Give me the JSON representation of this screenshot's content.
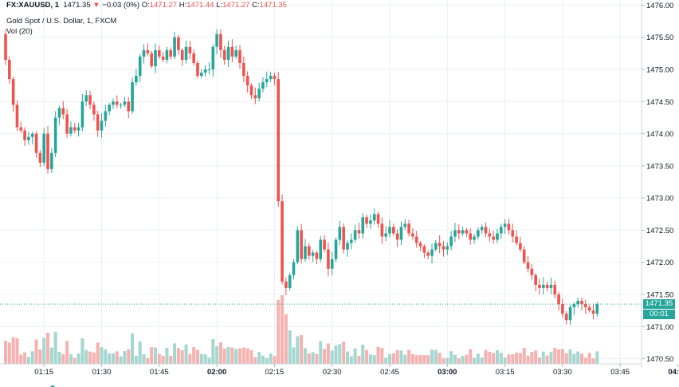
{
  "legend": {
    "symbol": "FX:XAUUSD, 1",
    "last": "1471.35",
    "arrow": "▼",
    "change": "−0.03 (0%)",
    "o_label": "O:",
    "o": "1471.27",
    "h_label": "H:",
    "h": "1471.44",
    "l_label": "L:",
    "l": "1471.27",
    "c_label": "C:",
    "c": "1471.35"
  },
  "series_title": "Gold Spot / U.S. Dollar, 1, FXCM",
  "volume_title": "Vol (20)",
  "price_tag": {
    "price": "1471.35",
    "countdown": "00:01"
  },
  "colors": {
    "up": "#26a69a",
    "down": "#ef5350",
    "up_vol": "#a5d6d0",
    "down_vol": "#f4b2b0",
    "grid": "#eceff2"
  },
  "chart_data": {
    "type": "candlestick",
    "title": "Gold Spot / U.S. Dollar, 1, FXCM",
    "interval": "1 minute",
    "ylim": [
      1470.42,
      1476.08
    ],
    "y_ticks": [
      1470.5,
      1471.0,
      1471.5,
      1472.0,
      1472.5,
      1473.0,
      1473.5,
      1474.0,
      1474.5,
      1475.0,
      1475.5,
      1476.0
    ],
    "y_tick_labels": [
      "1470.50",
      "1471.00",
      "1471.50",
      "1472.00",
      "1472.50",
      "1473.00",
      "1473.50",
      "1474.00",
      "1474.50",
      "1475.00",
      "1475.50",
      "1476.00"
    ],
    "x_ticks": [
      {
        "label": "01:15",
        "bar": 10,
        "bold": false
      },
      {
        "label": "01:30",
        "bar": 25,
        "bold": false
      },
      {
        "label": "01:45",
        "bar": 40,
        "bold": false
      },
      {
        "label": "02:00",
        "bar": 55,
        "bold": true
      },
      {
        "label": "02:15",
        "bar": 70,
        "bold": false
      },
      {
        "label": "02:30",
        "bar": 85,
        "bold": false
      },
      {
        "label": "02:45",
        "bar": 100,
        "bold": false
      },
      {
        "label": "03:00",
        "bar": 115,
        "bold": true
      },
      {
        "label": "03:15",
        "bar": 130,
        "bold": false
      },
      {
        "label": "03:30",
        "bar": 145,
        "bold": false
      },
      {
        "label": "03:45",
        "bar": 160,
        "bold": false
      },
      {
        "label": "04:00",
        "bar": 175,
        "bold": true
      }
    ],
    "closes": [
      1475.15,
      1474.85,
      1474.45,
      1474.1,
      1474.05,
      1473.9,
      1473.95,
      1474.0,
      1473.7,
      1473.55,
      1474.0,
      1473.45,
      1473.7,
      1474.25,
      1474.4,
      1474.3,
      1474.0,
      1474.1,
      1474.05,
      1474.1,
      1474.5,
      1474.6,
      1474.45,
      1474.3,
      1474.05,
      1474.2,
      1474.35,
      1474.45,
      1474.5,
      1474.45,
      1474.45,
      1474.5,
      1474.35,
      1474.8,
      1474.9,
      1475.2,
      1475.3,
      1475.25,
      1475.05,
      1475.3,
      1475.2,
      1475.15,
      1475.3,
      1475.2,
      1475.5,
      1475.3,
      1475.15,
      1475.35,
      1475.25,
      1475.1,
      1474.9,
      1474.95,
      1475.0,
      1475.0,
      1475.35,
      1475.55,
      1475.3,
      1475.15,
      1475.35,
      1475.2,
      1475.3,
      1475.1,
      1474.9,
      1474.75,
      1474.6,
      1474.55,
      1474.7,
      1474.8,
      1474.85,
      1474.9,
      1474.85,
      1472.95,
      1471.7,
      1471.6,
      1471.8,
      1472.0,
      1472.5,
      1472.05,
      1472.25,
      1472.1,
      1472.15,
      1472.05,
      1472.35,
      1472.2,
      1471.9,
      1472.05,
      1472.35,
      1472.55,
      1472.2,
      1472.3,
      1472.35,
      1472.5,
      1472.45,
      1472.7,
      1472.6,
      1472.65,
      1472.75,
      1472.6,
      1472.4,
      1472.45,
      1472.55,
      1472.45,
      1472.35,
      1472.55,
      1472.6,
      1472.45,
      1472.4,
      1472.3,
      1472.25,
      1472.15,
      1472.1,
      1472.2,
      1472.3,
      1472.25,
      1472.2,
      1472.25,
      1472.4,
      1472.5,
      1472.45,
      1472.5,
      1472.45,
      1472.35,
      1472.4,
      1472.5,
      1472.55,
      1472.45,
      1472.4,
      1472.35,
      1472.45,
      1472.55,
      1472.6,
      1472.5,
      1472.4,
      1472.3,
      1472.2,
      1472.0,
      1471.9,
      1471.8,
      1471.65,
      1471.6,
      1471.65,
      1471.6,
      1471.65,
      1471.5,
      1471.35,
      1471.2,
      1471.1,
      1471.3,
      1471.35,
      1471.4,
      1471.35,
      1471.3,
      1471.25,
      1471.2,
      1471.35
    ],
    "ohlc_last": {
      "open": 1471.27,
      "high": 1471.44,
      "low": 1471.27,
      "close": 1471.35
    },
    "last_price": 1471.35,
    "volume_series": "Vol (20)"
  }
}
